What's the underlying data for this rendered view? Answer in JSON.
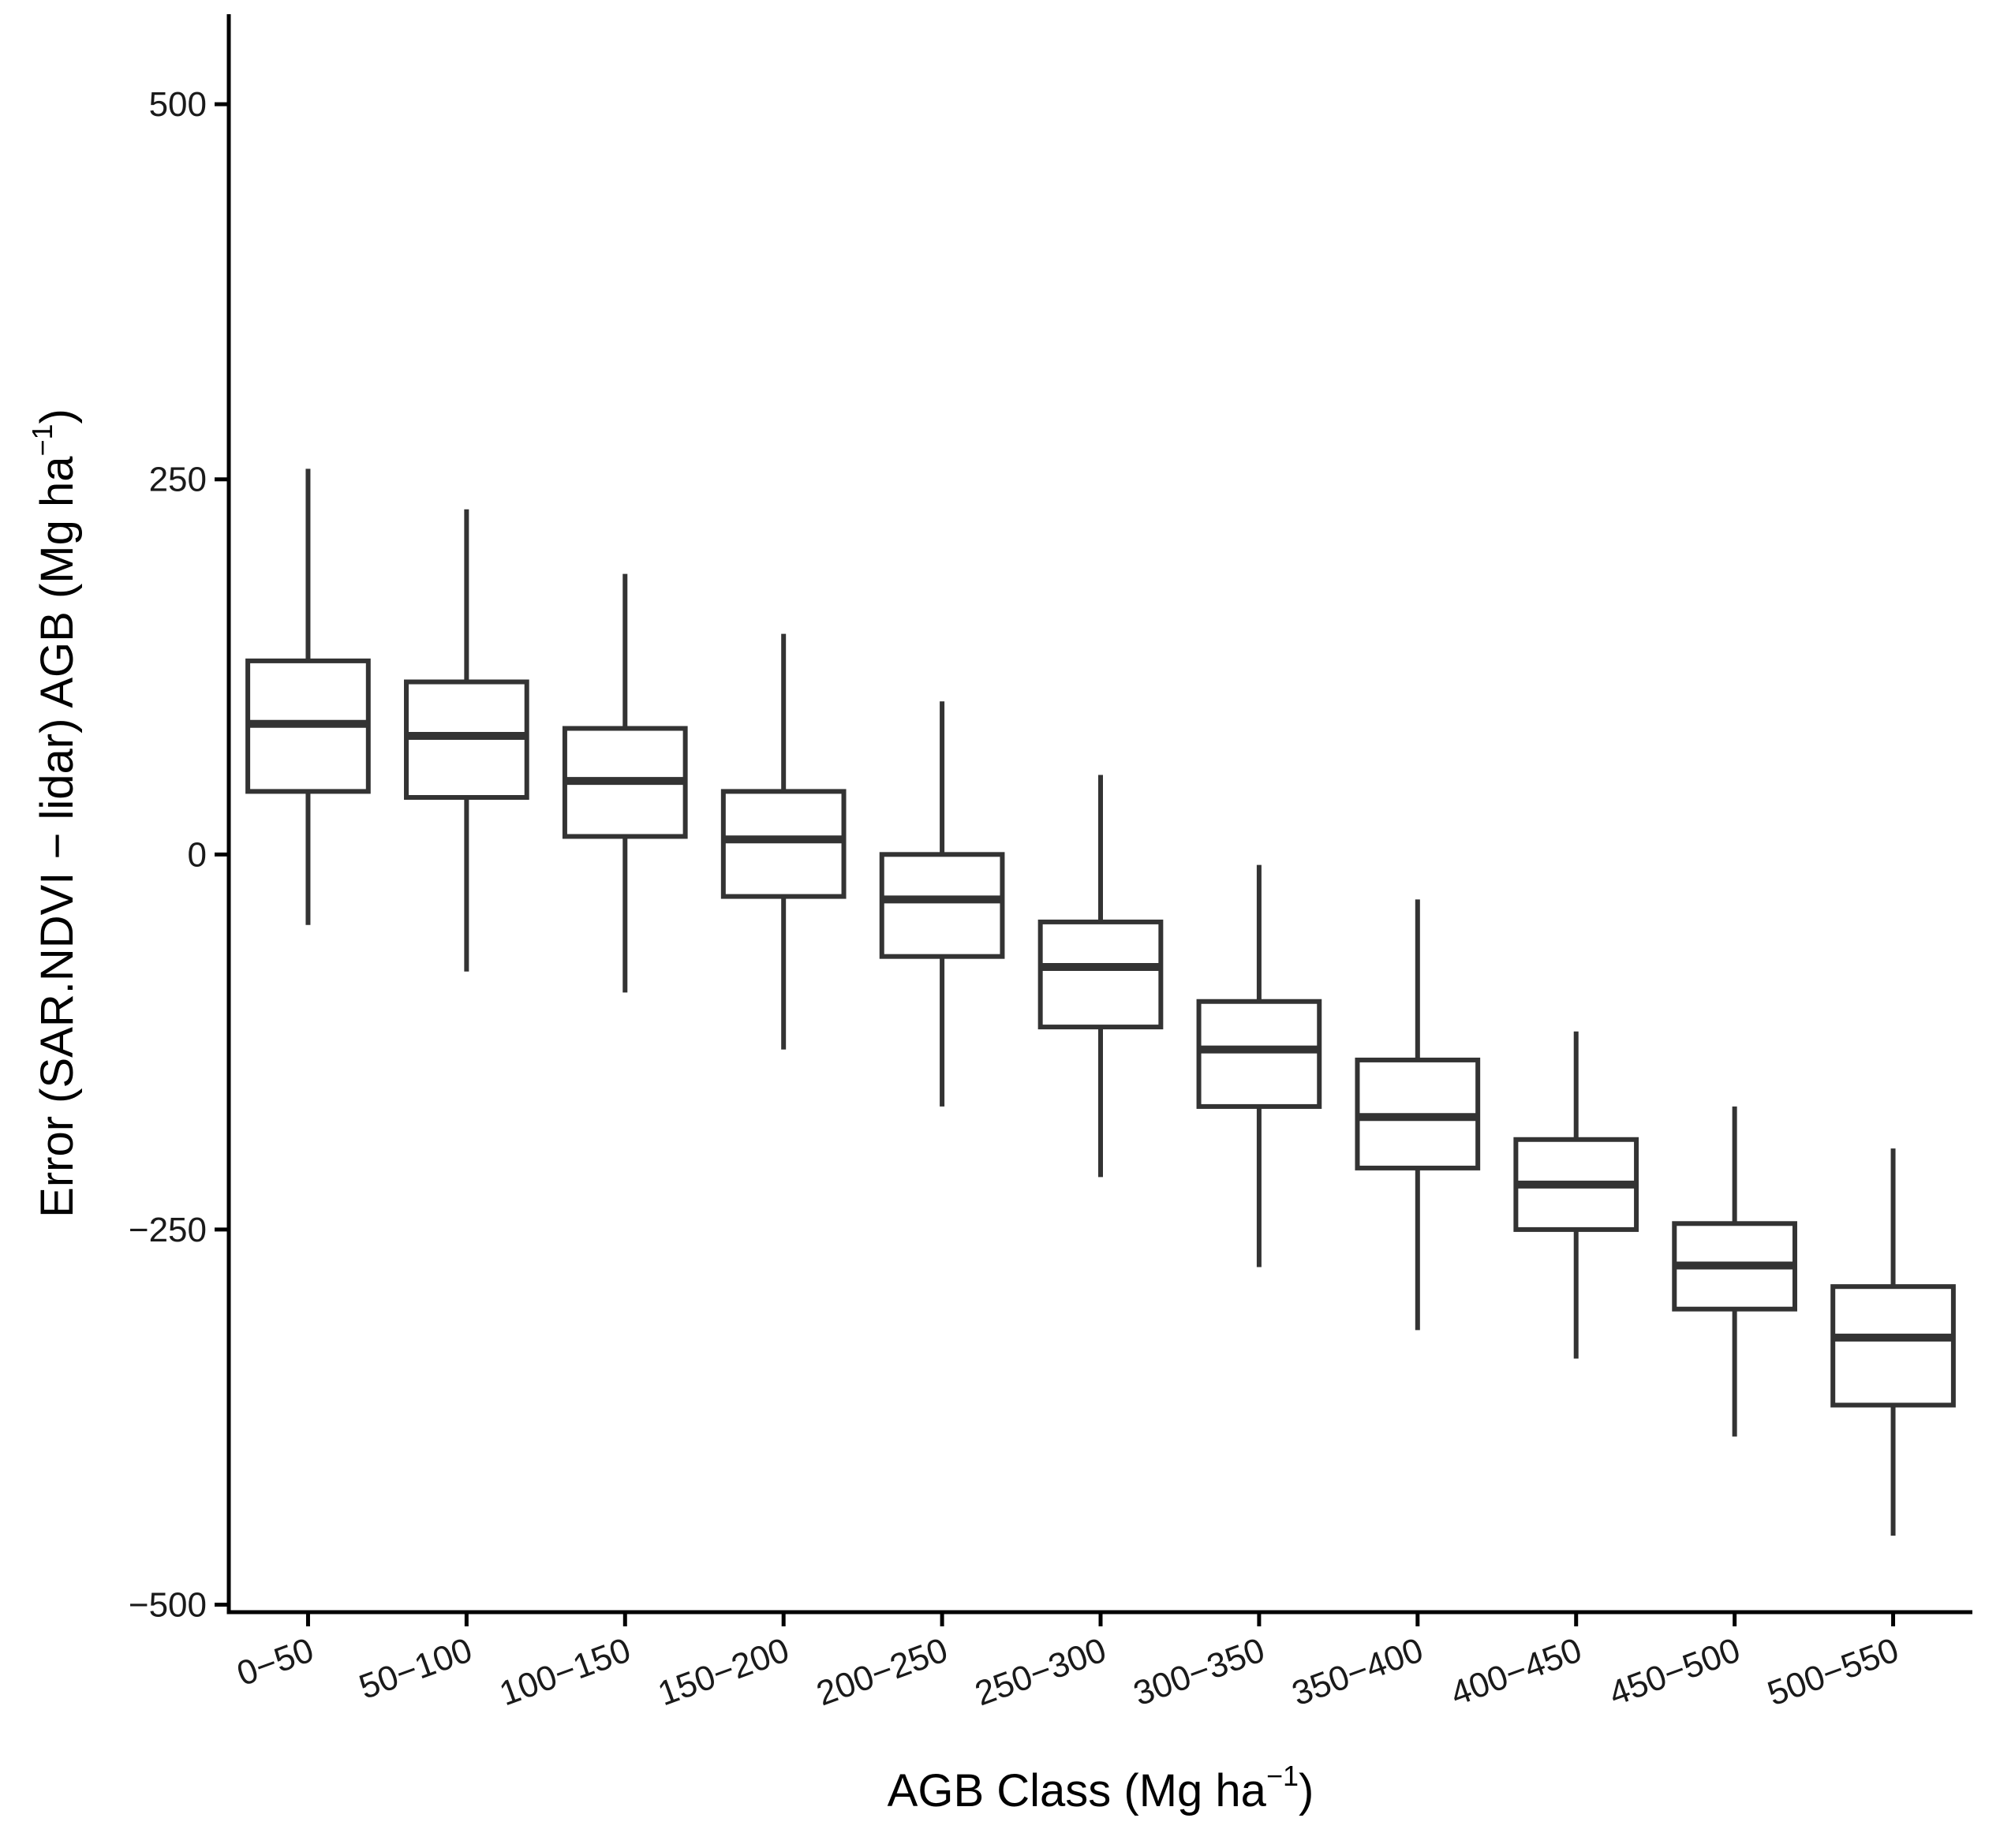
{
  "chart_data": {
    "type": "boxplot",
    "title": "",
    "xlabel": "AGB Class (Mg ha",
    "xlabel_sup": "−1",
    "xlabel_end": ")",
    "ylabel": "Error (SAR.NDVI − lidar) AGB (Mg ha",
    "ylabel_sup": "−1",
    "ylabel_end": ")",
    "ylim": [
      -505,
      560
    ],
    "yticks": [
      {
        "value": 500,
        "label": "500"
      },
      {
        "value": 250,
        "label": "250"
      },
      {
        "value": 0,
        "label": "0"
      },
      {
        "value": -250,
        "label": "−250"
      },
      {
        "value": -500,
        "label": "−500"
      }
    ],
    "categories": [
      "0−50",
      "50−100",
      "100−150",
      "150−200",
      "200−250",
      "250−300",
      "300−350",
      "350−400",
      "400−450",
      "450−500",
      "500−550"
    ],
    "boxes": [
      {
        "whisker_low": -47,
        "q1": 42,
        "median": 87,
        "q3": 129,
        "whisker_high": 257
      },
      {
        "whisker_low": -78,
        "q1": 38,
        "median": 79,
        "q3": 115,
        "whisker_high": 230
      },
      {
        "whisker_low": -92,
        "q1": 12,
        "median": 49,
        "q3": 84,
        "whisker_high": 187
      },
      {
        "whisker_low": -130,
        "q1": -28,
        "median": 10,
        "q3": 42,
        "whisker_high": 147
      },
      {
        "whisker_low": -168,
        "q1": -68,
        "median": -30,
        "q3": 0,
        "whisker_high": 102
      },
      {
        "whisker_low": -215,
        "q1": -115,
        "median": -75,
        "q3": -45,
        "whisker_high": 53
      },
      {
        "whisker_low": -275,
        "q1": -168,
        "median": -130,
        "q3": -98,
        "whisker_high": -7
      },
      {
        "whisker_low": -317,
        "q1": -209,
        "median": -175,
        "q3": -137,
        "whisker_high": -30
      },
      {
        "whisker_low": -336,
        "q1": -250,
        "median": -220,
        "q3": -190,
        "whisker_high": -118
      },
      {
        "whisker_low": -388,
        "q1": -303,
        "median": -274,
        "q3": -246,
        "whisker_high": -168
      },
      {
        "whisker_low": -454,
        "q1": -367,
        "median": -322,
        "q3": -288,
        "whisker_high": -196
      }
    ],
    "colors": {
      "box_stroke": "#333333",
      "box_fill": "#ffffff",
      "axis": "#000000"
    },
    "grid": false,
    "legend": "none"
  }
}
